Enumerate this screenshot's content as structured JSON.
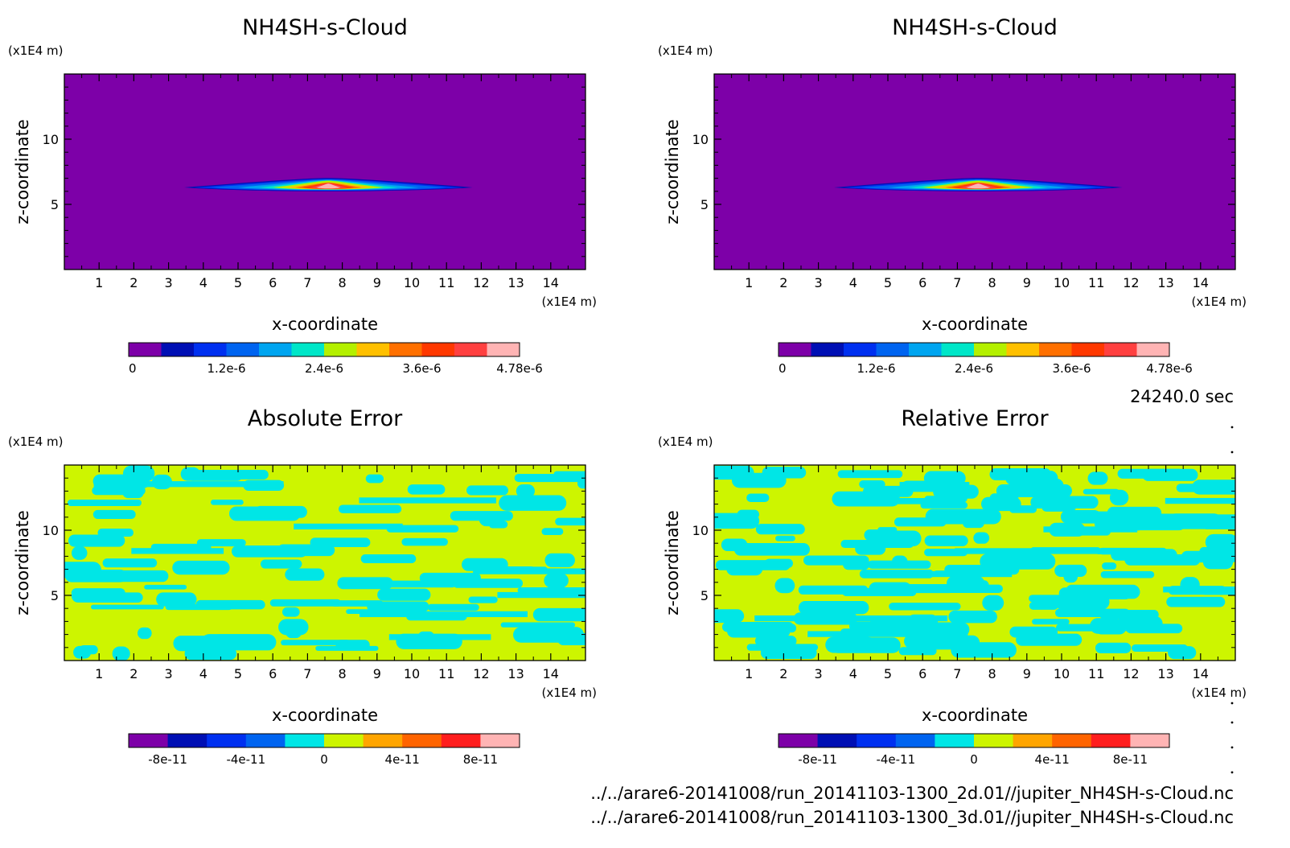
{
  "time_label": "24240.0 sec",
  "files": [
    "../../arare6-20141008/run_20141103-1300_2d.01//jupiter_NH4SH-s-Cloud.nc",
    "../../arare6-20141008/run_20141103-1300_3d.01//jupiter_NH4SH-s-Cloud.nc"
  ],
  "chart_data": [
    {
      "type": "heatmap",
      "title": "NH4SH-s-Cloud",
      "xlabel": "x-coordinate",
      "ylabel": "z-coordinate",
      "x_unit": "(x1E4 m)",
      "y_unit": "(x1E4 m)",
      "xlim": [
        0,
        15
      ],
      "ylim": [
        0,
        15
      ],
      "xticks": [
        "1",
        "2",
        "3",
        "4",
        "5",
        "6",
        "7",
        "8",
        "9",
        "10",
        "11",
        "12",
        "13",
        "14"
      ],
      "yticks": [
        "5",
        "10"
      ],
      "colorbar": {
        "levels": 11,
        "tick_labels": [
          "0",
          "1.2e-6",
          "2.4e-6",
          "3.6e-6",
          "4.78e-6"
        ],
        "colors": [
          "#7d00a8",
          "#000fb4",
          "#0030f0",
          "#0064f0",
          "#00a5f0",
          "#00e6c8",
          "#b4f000",
          "#ffc000",
          "#ff7000",
          "#ff3800",
          "#ff4040",
          "#ffb4b4"
        ]
      },
      "feature": "thin cloud layer near z = 6.3, from x = 3.4 to x = 11.8, maximum 4.78e-6 near x = 7.6"
    },
    {
      "type": "heatmap",
      "title": "NH4SH-s-Cloud",
      "xlabel": "x-coordinate",
      "ylabel": "z-coordinate",
      "x_unit": "(x1E4 m)",
      "y_unit": "(x1E4 m)",
      "xlim": [
        0,
        15
      ],
      "ylim": [
        0,
        15
      ],
      "xticks": [
        "1",
        "2",
        "3",
        "4",
        "5",
        "6",
        "7",
        "8",
        "9",
        "10",
        "11",
        "12",
        "13",
        "14"
      ],
      "yticks": [
        "5",
        "10"
      ],
      "colorbar": {
        "levels": 11,
        "tick_labels": [
          "0",
          "1.2e-6",
          "2.4e-6",
          "3.6e-6",
          "4.78e-6"
        ],
        "colors": [
          "#7d00a8",
          "#000fb4",
          "#0030f0",
          "#0064f0",
          "#00a5f0",
          "#00e6c8",
          "#b4f000",
          "#ffc000",
          "#ff7000",
          "#ff3800",
          "#ff4040",
          "#ffb4b4"
        ]
      },
      "feature": "thin cloud layer near z = 6.3, from x = 3.4 to x = 11.8, maximum 4.78e-6 near x = 7.6"
    },
    {
      "type": "heatmap",
      "title": "Absolute Error",
      "xlabel": "x-coordinate",
      "ylabel": "z-coordinate",
      "x_unit": "(x1E4 m)",
      "y_unit": "(x1E4 m)",
      "xlim": [
        0,
        15
      ],
      "ylim": [
        0,
        15
      ],
      "xticks": [
        "1",
        "2",
        "3",
        "4",
        "5",
        "6",
        "7",
        "8",
        "9",
        "10",
        "11",
        "12",
        "13",
        "14"
      ],
      "yticks": [
        "5",
        "10"
      ],
      "colorbar": {
        "levels": 10,
        "tick_labels": [
          "-8e-11",
          "-4e-11",
          "0",
          "4e-11",
          "8e-11"
        ],
        "colors": [
          "#7d00a8",
          "#000fb4",
          "#0030f0",
          "#0064f0",
          "#00e6e6",
          "#cdf500",
          "#ffa500",
          "#ff6400",
          "#ff1e1e",
          "#ffb4b4"
        ]
      },
      "feature": "field alternates between the two classes adjacent to 0 (cyan just below 0, yellow-green just above 0)"
    },
    {
      "type": "heatmap",
      "title": "Relative Error",
      "xlabel": "x-coordinate",
      "ylabel": "z-coordinate",
      "x_unit": "(x1E4 m)",
      "y_unit": "(x1E4 m)",
      "xlim": [
        0,
        15
      ],
      "ylim": [
        0,
        15
      ],
      "xticks": [
        "1",
        "2",
        "3",
        "4",
        "5",
        "6",
        "7",
        "8",
        "9",
        "10",
        "11",
        "12",
        "13",
        "14"
      ],
      "yticks": [
        "5",
        "10"
      ],
      "colorbar": {
        "levels": 10,
        "tick_labels": [
          "-8e-11",
          "-4e-11",
          "0",
          "4e-11",
          "8e-11"
        ],
        "colors": [
          "#7d00a8",
          "#000fb4",
          "#0030f0",
          "#0064f0",
          "#00e6e6",
          "#cdf500",
          "#ffa500",
          "#ff6400",
          "#ff1e1e",
          "#ffb4b4"
        ]
      },
      "feature": "field alternates between the two classes adjacent to 0 (cyan just below 0, yellow-green just above 0)"
    }
  ]
}
